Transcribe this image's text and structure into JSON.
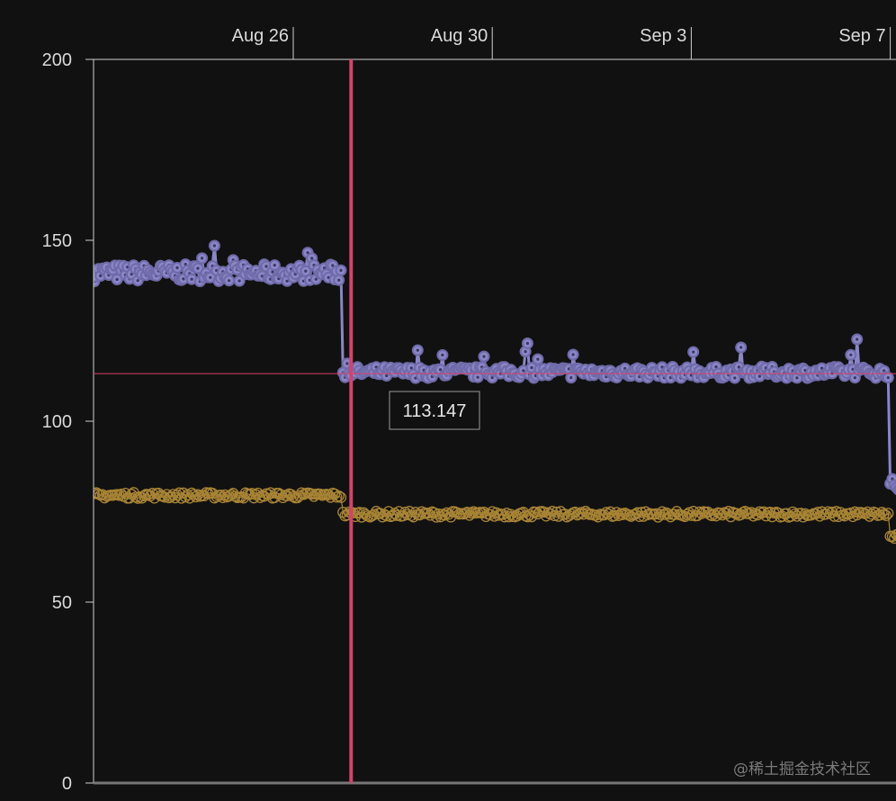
{
  "chart_data": {
    "type": "line",
    "x_ticks": [
      "Aug 26",
      "Aug 30",
      "Sep 3",
      "Sep 7"
    ],
    "y_ticks": [
      "0",
      "50",
      "100",
      "150",
      "200"
    ],
    "ylim": [
      0,
      200
    ],
    "grid": false,
    "cursor": {
      "date": "Aug 27",
      "value": 113.147,
      "label": "113.147",
      "color": "#d6416a"
    },
    "series": [
      {
        "color": "#8a86c8",
        "marker": "filled-circle",
        "segments": [
          {
            "x_start": "Aug 22",
            "x_end": "Aug 27",
            "mean": 141,
            "noise": 2.4
          },
          {
            "x_start": "Aug 27",
            "x_end": "Sep 7",
            "mean": 113.5,
            "noise": 1.6
          },
          {
            "x_start": "Sep 7",
            "x_end": "Sep 9",
            "mean": 82,
            "noise": 2.2
          }
        ]
      },
      {
        "color": "#a88435",
        "marker": "hollow-circle",
        "segments": [
          {
            "x_start": "Aug 22",
            "x_end": "Aug 27",
            "mean": 79.5,
            "noise": 0.8
          },
          {
            "x_start": "Aug 27",
            "x_end": "Sep 7",
            "mean": 74.3,
            "noise": 0.8
          },
          {
            "x_start": "Sep 7",
            "x_end": "Sep 9",
            "mean": 68,
            "noise": 0.8
          }
        ]
      }
    ]
  },
  "watermark": "@稀土掘金技术社区"
}
